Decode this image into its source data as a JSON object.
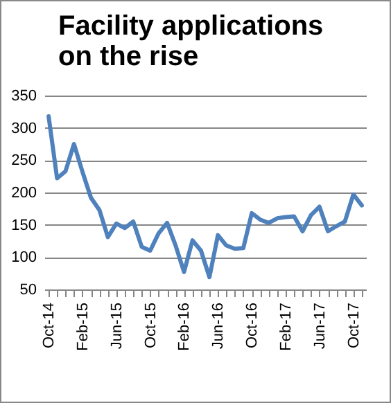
{
  "chart_data": {
    "type": "line",
    "title": "Facility applications on the rise",
    "categories": [
      "Oct-14",
      null,
      null,
      null,
      "Feb-15",
      null,
      null,
      null,
      "Jun-15",
      null,
      null,
      null,
      "Oct-15",
      null,
      null,
      null,
      "Feb-16",
      null,
      null,
      null,
      "Jun-16",
      null,
      null,
      null,
      "Oct-16",
      null,
      null,
      null,
      "Feb-17",
      null,
      null,
      null,
      "Jun-17",
      null,
      null,
      null,
      "Oct-17",
      null
    ],
    "series": [
      {
        "color": "#4f81bd",
        "values": [
          318,
          222,
          233,
          275,
          232,
          192,
          173,
          131,
          152,
          145,
          155,
          116,
          110,
          137,
          153,
          118,
          77,
          126,
          110,
          69,
          134,
          118,
          113,
          114,
          168,
          158,
          153,
          160,
          162,
          163,
          140,
          165,
          178,
          140,
          148,
          155,
          197,
          180
        ]
      }
    ],
    "ylim": [
      50,
      350
    ],
    "yticks": [
      50,
      100,
      150,
      200,
      250,
      300,
      350
    ],
    "grid": "y",
    "legend": false,
    "marker": "none",
    "line_style": "solid"
  }
}
